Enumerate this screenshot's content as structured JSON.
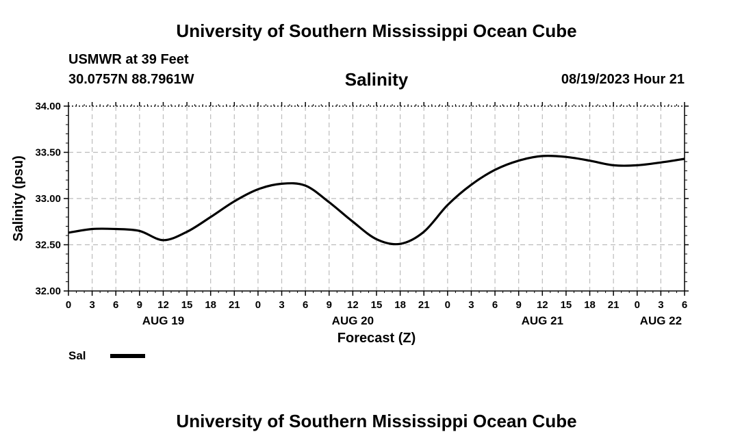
{
  "header": {
    "title": "University of Southern Mississippi Ocean Cube",
    "station": "USMWR at 39 Feet",
    "coords": "30.0757N  88.7961W",
    "run_time": "08/19/2023 Hour 21"
  },
  "footer": {
    "title": "University of Southern Mississippi Ocean Cube"
  },
  "chart_data": {
    "type": "line",
    "title": "Salinity",
    "xlabel": "Forecast (Z)",
    "ylabel": "Salinity (psu)",
    "ylim": [
      32.0,
      34.0
    ],
    "yticks": [
      "32.00",
      "32.50",
      "33.00",
      "33.50",
      "34.00"
    ],
    "x_hours_range": [
      0,
      78
    ],
    "x_tick_labels": [
      "0",
      "3",
      "6",
      "9",
      "12",
      "15",
      "18",
      "21",
      "0",
      "3",
      "6",
      "9",
      "12",
      "15",
      "18",
      "21",
      "0",
      "3",
      "6",
      "9",
      "12",
      "15",
      "18",
      "21",
      "0",
      "3",
      "6"
    ],
    "day_labels": [
      {
        "label": "AUG 19",
        "hour": 12
      },
      {
        "label": "AUG 20",
        "hour": 36
      },
      {
        "label": "AUG 21",
        "hour": 60
      },
      {
        "label": "AUG 22",
        "hour": 75
      }
    ],
    "grid": true,
    "legend_position": "bottom-left",
    "line_color": "#000000",
    "grid_color": "#bbbbbb",
    "series": [
      {
        "name": "Sal",
        "x_hours": [
          0,
          3,
          6,
          9,
          12,
          15,
          18,
          21,
          24,
          27,
          30,
          33,
          36,
          39,
          42,
          45,
          48,
          51,
          54,
          57,
          60,
          63,
          66,
          69,
          72,
          75,
          78
        ],
        "values": [
          32.63,
          32.67,
          32.67,
          32.65,
          32.55,
          32.64,
          32.8,
          32.97,
          33.1,
          33.16,
          33.14,
          32.96,
          32.75,
          32.56,
          32.51,
          32.64,
          32.93,
          33.15,
          33.31,
          33.41,
          33.46,
          33.45,
          33.41,
          33.36,
          33.36,
          33.39,
          33.43
        ]
      }
    ]
  }
}
